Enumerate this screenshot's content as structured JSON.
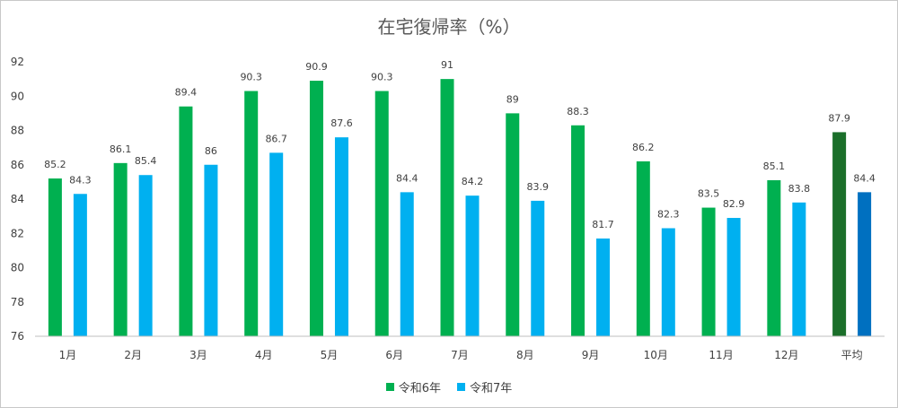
{
  "chart_data": {
    "type": "bar",
    "title": "在宅復帰率（%）",
    "categories": [
      "1月",
      "2月",
      "3月",
      "4月",
      "5月",
      "6月",
      "7月",
      "8月",
      "9月",
      "10月",
      "11月",
      "12月",
      "平均"
    ],
    "series": [
      {
        "name": "令和6年",
        "color": "#00b050",
        "highlight_color": "#1b6f2a",
        "values": [
          85.2,
          86.1,
          89.4,
          90.3,
          90.9,
          90.3,
          91,
          89,
          88.3,
          86.2,
          83.5,
          85.1,
          87.9
        ]
      },
      {
        "name": "令和7年",
        "color": "#00b0f0",
        "highlight_color": "#0070c0",
        "values": [
          84.3,
          85.4,
          86,
          86.7,
          87.6,
          84.4,
          84.2,
          83.9,
          81.7,
          82.3,
          82.9,
          83.8,
          84.4
        ]
      }
    ],
    "ylim": [
      76,
      92
    ],
    "yticks": [
      76,
      78,
      80,
      82,
      84,
      86,
      88,
      90,
      92
    ],
    "grid": false,
    "legend": "bottom"
  }
}
